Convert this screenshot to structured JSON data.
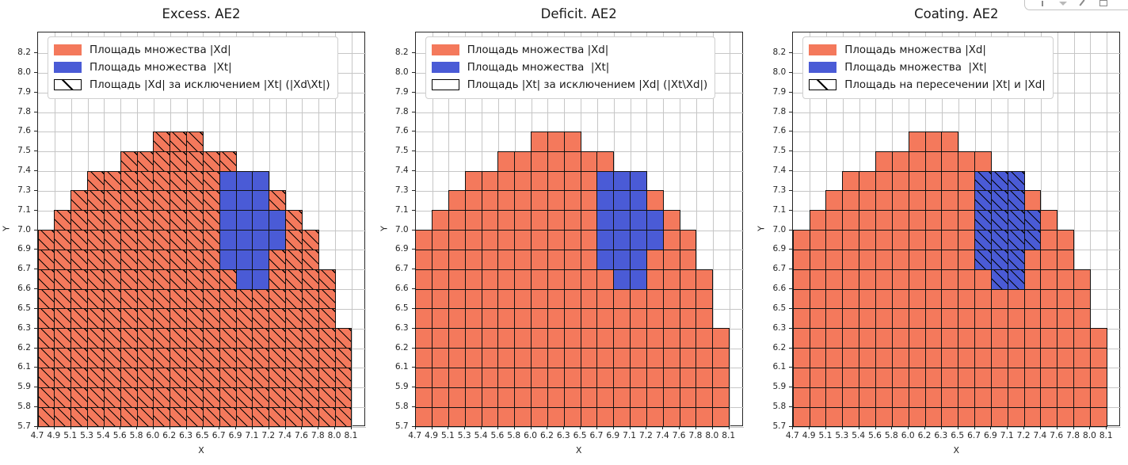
{
  "toolbar": {
    "icons": [
      {
        "name": "download-icon"
      },
      {
        "name": "dropdown-chevron-icon"
      },
      {
        "name": "edit-icon"
      },
      {
        "name": "save-icon"
      },
      {
        "name": "more-icon"
      }
    ]
  },
  "chart_data": {
    "type": "heatmap",
    "description": "Three identical 2D binned support plots of a mound-shaped set |Xd| (orange cells) containing a cluster |Xt| (blue cells); hatching marks a different subset in each panel.",
    "xlabel": "X",
    "ylabel": "Y",
    "x_tick_labels": [
      "4.7",
      "4.9",
      "5.1",
      "5.3",
      "5.4",
      "5.6",
      "5.8",
      "6.0",
      "6.2",
      "6.3",
      "6.5",
      "6.7",
      "6.9",
      "7.1",
      "7.2",
      "7.4",
      "7.6",
      "7.8",
      "8.0",
      "8.1"
    ],
    "y_tick_labels": [
      "8.2",
      "8.0",
      "7.9",
      "7.8",
      "7.6",
      "7.5",
      "7.4",
      "7.3",
      "7.1",
      "7.0",
      "6.9",
      "6.7",
      "6.6",
      "6.5",
      "6.3",
      "6.2",
      "6.1",
      "5.9",
      "5.8",
      "5.7"
    ],
    "colors": {
      "xd_fill": "#f4795c",
      "xt_fill": "#4a5bd6",
      "cell_edge": "#000000",
      "grid": "#c6c6c6"
    },
    "grid_rows": [
      {
        "row": 4,
        "c0": 7,
        "c1": 9,
        "b0": null,
        "b1": null
      },
      {
        "row": 5,
        "c0": 5,
        "c1": 11,
        "b0": null,
        "b1": null
      },
      {
        "row": 6,
        "c0": 3,
        "c1": 13,
        "b0": 11,
        "b1": 13
      },
      {
        "row": 7,
        "c0": 2,
        "c1": 14,
        "b0": 11,
        "b1": 13
      },
      {
        "row": 8,
        "c0": 1,
        "c1": 15,
        "b0": 11,
        "b1": 14
      },
      {
        "row": 9,
        "c0": 0,
        "c1": 16,
        "b0": 11,
        "b1": 14
      },
      {
        "row": 10,
        "c0": 0,
        "c1": 16,
        "b0": 11,
        "b1": 13
      },
      {
        "row": 11,
        "c0": 0,
        "c1": 17,
        "b0": 12,
        "b1": 13
      },
      {
        "row": 12,
        "c0": 0,
        "c1": 17,
        "b0": null,
        "b1": null
      },
      {
        "row": 13,
        "c0": 0,
        "c1": 17,
        "b0": null,
        "b1": null
      },
      {
        "row": 14,
        "c0": 0,
        "c1": 18,
        "b0": null,
        "b1": null
      },
      {
        "row": 15,
        "c0": 0,
        "c1": 18,
        "b0": null,
        "b1": null
      },
      {
        "row": 16,
        "c0": 0,
        "c1": 18,
        "b0": null,
        "b1": null
      },
      {
        "row": 17,
        "c0": 0,
        "c1": 18,
        "b0": null,
        "b1": null
      },
      {
        "row": 18,
        "c0": 0,
        "c1": 18,
        "b0": null,
        "b1": null
      }
    ],
    "charts": [
      {
        "title": "Excess. AE2",
        "hatch_target": "orange",
        "legend": [
          {
            "swatch": "orange",
            "label": "Площадь множества |Xd|"
          },
          {
            "swatch": "blue",
            "label": "Площадь множества  |Xt|"
          },
          {
            "swatch": "hatch",
            "label": "Площадь |Xd| за исключением |Xt| (|Xd\\Xt|)"
          }
        ]
      },
      {
        "title": "Deficit. AE2",
        "hatch_target": "none",
        "legend": [
          {
            "swatch": "orange",
            "label": "Площадь множества |Xd|"
          },
          {
            "swatch": "blue",
            "label": "Площадь множества  |Xt|"
          },
          {
            "swatch": "empty",
            "label": "Площадь |Xt| за исключением |Xd| (|Xt\\Xd|)"
          }
        ]
      },
      {
        "title": "Coating. AE2",
        "hatch_target": "blue",
        "legend": [
          {
            "swatch": "orange",
            "label": "Площадь множества |Xd|"
          },
          {
            "swatch": "blue",
            "label": "Площадь множества  |Xt|"
          },
          {
            "swatch": "hatch",
            "label": "Площадь на пересечении |Xt| и |Xd|"
          }
        ]
      }
    ]
  }
}
